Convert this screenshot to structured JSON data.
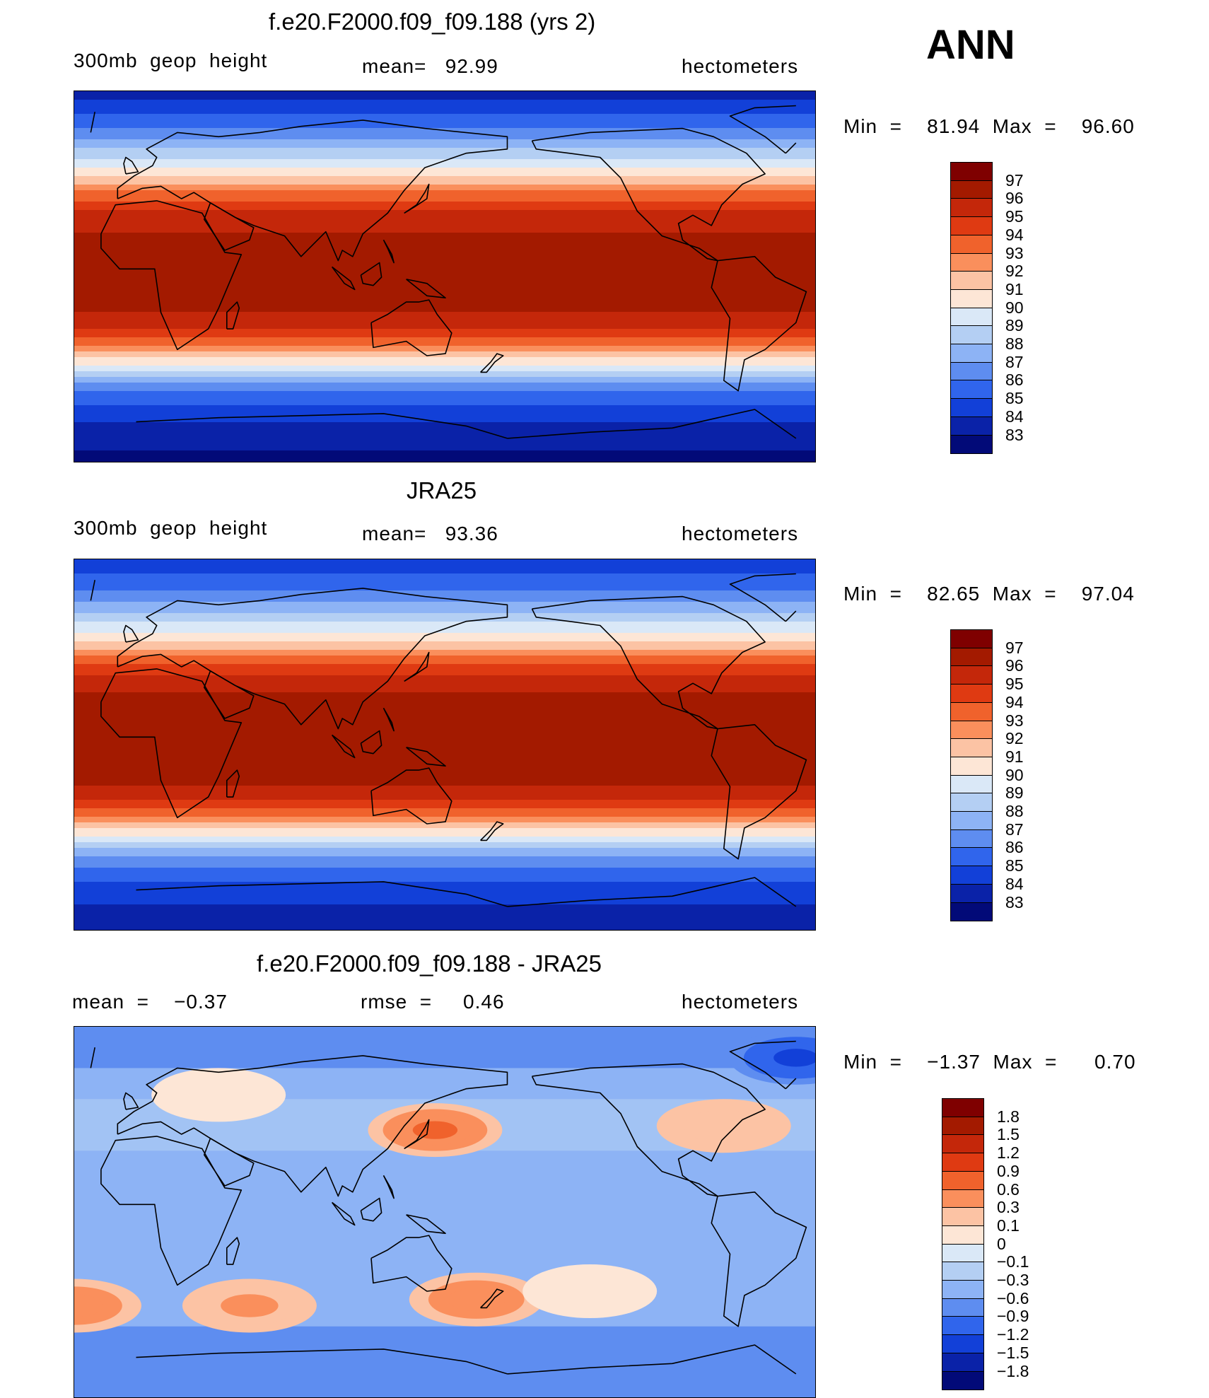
{
  "season": "ANN",
  "panels": [
    {
      "title": "f.e20.F2000.f09_f09.188 (yrs 2)",
      "left_label": "300mb  geop  height",
      "center_label": "mean=   92.99",
      "right_label": "hectometers",
      "minmax": "Min  =    81.94  Max  =    96.60"
    },
    {
      "title": "JRA25",
      "left_label": "300mb  geop  height",
      "center_label": "mean=   93.36",
      "right_label": "hectometers",
      "minmax": "Min  =    82.65  Max  =    97.04"
    },
    {
      "title": "f.e20.F2000.f09_f09.188 - JRA25",
      "left_label": "mean  =    −0.37",
      "center_label": "rmse  =     0.46",
      "right_label": "hectometers",
      "minmax": "Min  =    −1.37  Max  =      0.70"
    }
  ],
  "chart_data": [
    {
      "type": "heatmap",
      "title": "f.e20.F2000.f09_f09.188 (yrs 2)",
      "variable": "300mb geop height",
      "units": "hectometers",
      "mean": 92.99,
      "min": 81.94,
      "max": 96.6,
      "colorbar_levels": [
        "97",
        "96",
        "95",
        "94",
        "93",
        "92",
        "91",
        "90",
        "89",
        "88",
        "87",
        "86",
        "85",
        "84",
        "83"
      ],
      "zonal_profile": [
        {
          "lat": 90,
          "value": 83.5
        },
        {
          "lat": 75,
          "value": 85.5
        },
        {
          "lat": 62,
          "value": 88
        },
        {
          "lat": 50,
          "value": 90.5
        },
        {
          "lat": 42,
          "value": 93
        },
        {
          "lat": 32,
          "value": 95
        },
        {
          "lat": 20,
          "value": 96.2
        },
        {
          "lat": 0,
          "value": 96.5
        },
        {
          "lat": -15,
          "value": 96.2
        },
        {
          "lat": -25,
          "value": 95
        },
        {
          "lat": -35,
          "value": 92.5
        },
        {
          "lat": -45,
          "value": 89
        },
        {
          "lat": -55,
          "value": 86
        },
        {
          "lat": -70,
          "value": 84
        },
        {
          "lat": -90,
          "value": 82.5
        }
      ]
    },
    {
      "type": "heatmap",
      "title": "JRA25",
      "variable": "300mb geop height",
      "units": "hectometers",
      "mean": 93.36,
      "min": 82.65,
      "max": 97.04,
      "colorbar_levels": [
        "97",
        "96",
        "95",
        "94",
        "93",
        "92",
        "91",
        "90",
        "89",
        "88",
        "87",
        "86",
        "85",
        "84",
        "83"
      ],
      "zonal_profile": [
        {
          "lat": 90,
          "value": 84
        },
        {
          "lat": 75,
          "value": 86
        },
        {
          "lat": 62,
          "value": 88.5
        },
        {
          "lat": 50,
          "value": 91
        },
        {
          "lat": 42,
          "value": 93.5
        },
        {
          "lat": 32,
          "value": 95.5
        },
        {
          "lat": 20,
          "value": 96.5
        },
        {
          "lat": 0,
          "value": 96.8
        },
        {
          "lat": -15,
          "value": 96.5
        },
        {
          "lat": -25,
          "value": 95.5
        },
        {
          "lat": -35,
          "value": 93
        },
        {
          "lat": -45,
          "value": 89.5
        },
        {
          "lat": -55,
          "value": 86.5
        },
        {
          "lat": -70,
          "value": 84.5
        },
        {
          "lat": -90,
          "value": 83
        }
      ]
    },
    {
      "type": "heatmap",
      "title": "f.e20.F2000.f09_f09.188 - JRA25",
      "units": "hectometers",
      "mean": -0.37,
      "rmse": 0.46,
      "min": -1.37,
      "max": 0.7,
      "colorbar_levels": [
        "1.8",
        "1.5",
        "1.2",
        "0.9",
        "0.6",
        "0.3",
        "0.1",
        "0",
        "−0.1",
        "−0.3",
        "−0.6",
        "−0.9",
        "−1.2",
        "−1.5",
        "−1.8"
      ],
      "anomalies": [
        {
          "lon": 145,
          "lat": 40,
          "value": 0.7
        },
        {
          "lon": 285,
          "lat": 42,
          "value": 0.3
        },
        {
          "lon": 165,
          "lat": -42,
          "value": 0.6
        },
        {
          "lon": 55,
          "lat": -45,
          "value": 0.4
        },
        {
          "lon": 330,
          "lat": -45,
          "value": 0.6
        },
        {
          "lon": 220,
          "lat": -38,
          "value": 0.1
        },
        {
          "lon": 40,
          "lat": 57,
          "value": 0.1
        },
        {
          "lon": 320,
          "lat": 75,
          "value": -1.3
        }
      ]
    }
  ],
  "colors": {
    "full": [
      "#7f0000",
      "#a31a00",
      "#c4270a",
      "#df3a12",
      "#f0622c",
      "#fa8f5c",
      "#fcc3a4",
      "#fde6d6",
      "#dae8f7",
      "#b4cff3",
      "#8db3f5",
      "#5e8df0",
      "#3065ec",
      "#1240d8",
      "#0a22a8",
      "#020a78"
    ],
    "diff": [
      "#7f0000",
      "#a31a00",
      "#c4270a",
      "#df3a12",
      "#f0622c",
      "#fa8f5c",
      "#fcc3a4",
      "#fde6d6",
      "#dae8f7",
      "#b4cff3",
      "#8db3f5",
      "#5e8df0",
      "#3065ec",
      "#1240d8",
      "#0a22a8",
      "#020a78"
    ]
  }
}
